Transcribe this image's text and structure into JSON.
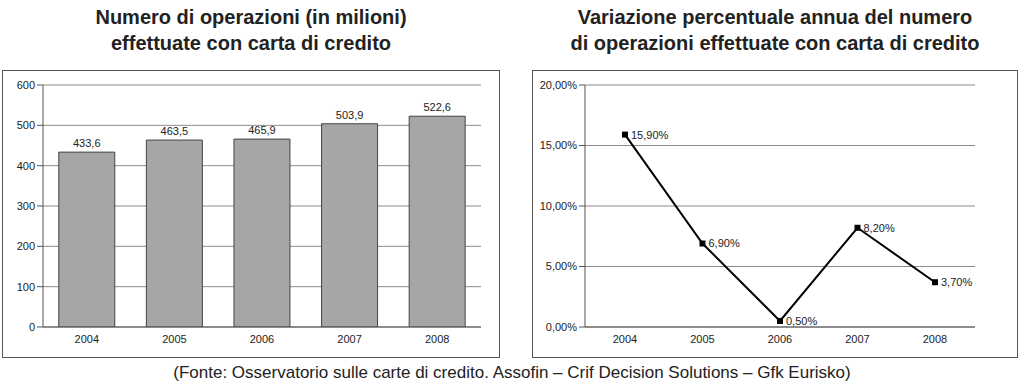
{
  "chart_data": [
    {
      "type": "bar",
      "title": "Numero di operazioni (in milioni)\neffettuate con carta di credito",
      "categories": [
        "2004",
        "2005",
        "2006",
        "2007",
        "2008"
      ],
      "values": [
        433.6,
        463.5,
        465.9,
        503.9,
        522.6
      ],
      "value_labels": [
        "433,6",
        "463,5",
        "465,9",
        "503,9",
        "522,6"
      ],
      "data_labels": true,
      "color": "#a6a6a6",
      "ylim": [
        0,
        600
      ],
      "yticks": [
        0,
        100,
        200,
        300,
        400,
        500,
        600
      ],
      "grid": true
    },
    {
      "type": "line",
      "title": "Variazione percentuale annua del numero\ndi operazioni effettuate con carta di credito",
      "categories": [
        "2004",
        "2005",
        "2006",
        "2007",
        "2008"
      ],
      "values": [
        15.9,
        6.9,
        0.5,
        8.2,
        3.7
      ],
      "value_labels": [
        "15,90%",
        "6,90%",
        "0,50%",
        "8,20%",
        "3,70%"
      ],
      "data_labels": true,
      "color": "#000000",
      "marker": "square",
      "line_style": "solid",
      "ylim": [
        0,
        20
      ],
      "yticks": [
        {
          "value": 0,
          "label": "0,00%"
        },
        {
          "value": 5,
          "label": "5,00%"
        },
        {
          "value": 10,
          "label": "10,00%"
        },
        {
          "value": 15,
          "label": "15,00%"
        },
        {
          "value": 20,
          "label": "20,00%"
        }
      ],
      "grid": true
    }
  ],
  "source": "(Fonte: Osservatorio sulle carte di credito. Assofin – Crif Decision Solutions – Gfk Eurisko)"
}
